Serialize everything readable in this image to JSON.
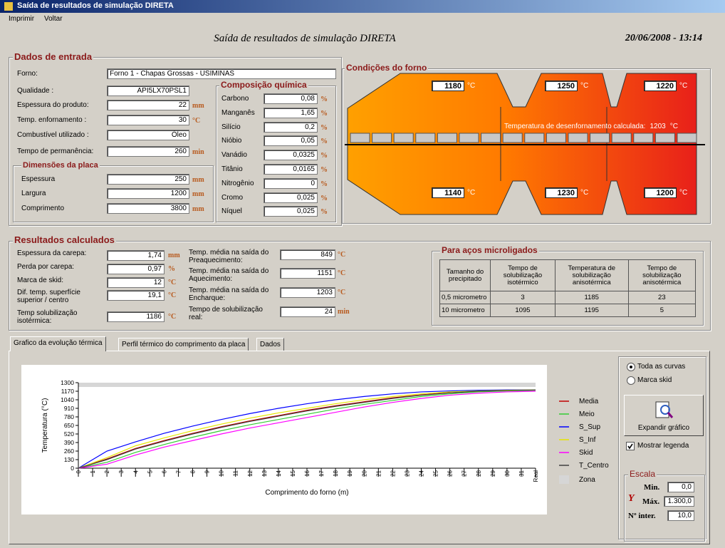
{
  "window": {
    "title": "Saída de resultados de simulação DIRETA",
    "menu": [
      "Imprimir",
      "Voltar"
    ]
  },
  "header": {
    "title": "Saída de resultados de simulação DIRETA",
    "datetime": "20/06/2008 - 13:14"
  },
  "input": {
    "title": "Dados de entrada",
    "fields": [
      {
        "label": "Forno:",
        "value": "Forno 1 - Chapas Grossas - USIMINAS"
      },
      {
        "label": "Qualidade :",
        "value": "API5LX70PSL1"
      },
      {
        "label": "Espessura do produto:",
        "value": "22",
        "unit": "mm"
      },
      {
        "label": "Temp. enfornamento :",
        "value": "30",
        "unit": "°C"
      },
      {
        "label": "Combustível utilizado :",
        "value": "Óleo"
      },
      {
        "label": "Tempo de permanência:",
        "value": "260",
        "unit": "min"
      }
    ],
    "dimensions": {
      "title": "Dimensões da placa",
      "fields": [
        {
          "label": "Espessura",
          "value": "250",
          "unit": "mm"
        },
        {
          "label": "Largura",
          "value": "1200",
          "unit": "mm"
        },
        {
          "label": "Comprimento",
          "value": "3800",
          "unit": "mm"
        }
      ]
    },
    "chemistry": {
      "title": "Composição química",
      "fields": [
        {
          "label": "Carbono",
          "value": "0,08",
          "unit": "%"
        },
        {
          "label": "Manganês",
          "value": "1,65",
          "unit": "%"
        },
        {
          "label": "Silício",
          "value": "0,2",
          "unit": "%"
        },
        {
          "label": "Nióbio",
          "value": "0,05",
          "unit": "%"
        },
        {
          "label": "Vanádio",
          "value": "0,0325",
          "unit": "%"
        },
        {
          "label": "Titânio",
          "value": "0,0165",
          "unit": "%"
        },
        {
          "label": "Nitrogênio",
          "value": "0",
          "unit": "%"
        },
        {
          "label": "Cromo",
          "value": "0,025",
          "unit": "%"
        },
        {
          "label": "Níquel",
          "value": "0,025",
          "unit": "%"
        }
      ]
    }
  },
  "furnace": {
    "title": "Condições do forno",
    "top": [
      "1180",
      "1250",
      "1220"
    ],
    "bottom": [
      "1140",
      "1230",
      "1200"
    ],
    "unit": "°C",
    "discharge_label": "Temperatura de desenfornamento calculada:",
    "discharge_value": "1203"
  },
  "results": {
    "title": "Resultados calculados",
    "left": [
      {
        "label": "Espessura da carepa:",
        "value": "1,74",
        "unit": "mm"
      },
      {
        "label": "Perda por carepa:",
        "value": "0,97",
        "unit": "%"
      },
      {
        "label": "Marca de skid:",
        "value": "12",
        "unit": "°C"
      },
      {
        "label": "Dif. temp. superfície superior / centro",
        "value": "19,1",
        "unit": "°C"
      },
      {
        "label": "Temp solubilização isotérmica:",
        "value": "1186",
        "unit": "°C"
      }
    ],
    "right": [
      {
        "label": "Temp. média na saída do Preaquecimento:",
        "value": "849",
        "unit": "°C"
      },
      {
        "label": "Temp. média na saída do Aquecimento:",
        "value": "1151",
        "unit": "°C"
      },
      {
        "label": "Temp. média na saída do Encharque:",
        "value": "1203",
        "unit": "°C"
      },
      {
        "label": "Tempo de solubilização real:",
        "value": "24",
        "unit": "min"
      }
    ]
  },
  "micro": {
    "title": "Para aços microligados",
    "columns": [
      "Tamanho do precipitado",
      "Tempo de solubilização isotérmico",
      "Temperatura de solubilização anisotérmica",
      "Tempo de solubilização anisotérmica"
    ],
    "rows": [
      [
        "0,5 micrometro",
        "3",
        "1185",
        "23"
      ],
      [
        "10 micrometro",
        "1095",
        "1195",
        "5"
      ]
    ]
  },
  "tabs": [
    "Grafico da evolução térmica",
    "Perfil térmico do comprimento da placa",
    "Dados"
  ],
  "controls": {
    "radios": [
      "Toda as curvas",
      "Marca skid"
    ],
    "button": "Expandir gráfico",
    "checkbox": "Mostrar legenda",
    "scale": {
      "title": "Escala",
      "axis": "Y",
      "min_label": "Min.",
      "min": "0,0",
      "max_label": "Máx.",
      "max": "1.300,0",
      "intervals_label": "Nº inter.",
      "intervals": "10,0"
    }
  },
  "chart_data": {
    "type": "line",
    "x_label": "Comprimento do forno (m)",
    "y_label": "Temperatura (°C)",
    "x": [
      0,
      2,
      4,
      6,
      8,
      10,
      12,
      14,
      16,
      18,
      20,
      22,
      24,
      26,
      28,
      30,
      32
    ],
    "series": [
      {
        "name": "Media",
        "color": "#c00000",
        "values": [
          0,
          140,
          300,
          420,
          530,
          630,
          720,
          800,
          880,
          950,
          1010,
          1070,
          1115,
          1150,
          1170,
          1180,
          1190
        ]
      },
      {
        "name": "Meio",
        "color": "#33cc33",
        "values": [
          0,
          90,
          240,
          360,
          470,
          570,
          660,
          740,
          820,
          900,
          970,
          1030,
          1090,
          1130,
          1160,
          1175,
          1185
        ]
      },
      {
        "name": "S_Sup",
        "color": "#0000ff",
        "values": [
          0,
          260,
          400,
          530,
          640,
          740,
          830,
          910,
          980,
          1040,
          1090,
          1130,
          1160,
          1175,
          1185,
          1190,
          1190
        ]
      },
      {
        "name": "S_Inf",
        "color": "#e6e600",
        "values": [
          0,
          160,
          340,
          460,
          570,
          670,
          760,
          840,
          910,
          980,
          1040,
          1090,
          1130,
          1160,
          1175,
          1185,
          1190
        ]
      },
      {
        "name": "Skid",
        "color": "#ff00ff",
        "values": [
          0,
          60,
          200,
          320,
          420,
          520,
          610,
          690,
          770,
          850,
          930,
          1000,
          1060,
          1110,
          1140,
          1160,
          1170
        ]
      },
      {
        "name": "T_Centro",
        "color": "#404040",
        "values": [
          0,
          130,
          290,
          410,
          520,
          620,
          710,
          790,
          870,
          940,
          1000,
          1060,
          1110,
          1145,
          1170,
          1180,
          1190
        ]
      }
    ],
    "zone": {
      "name": "Zona",
      "color": "#d6d6d6"
    },
    "xlim": [
      0,
      32
    ],
    "ylim": [
      0,
      1300
    ],
    "yticks": [
      0,
      130,
      260,
      390,
      520,
      650,
      780,
      910,
      1040,
      1170,
      1300
    ],
    "xticks": [
      0,
      1,
      2,
      3,
      4,
      5,
      6,
      7,
      8,
      9,
      10,
      11,
      12,
      13,
      14,
      15,
      16,
      17,
      18,
      19,
      20,
      21,
      22,
      23,
      24,
      25,
      26,
      27,
      28,
      29,
      30,
      31,
      {
        "value": 32,
        "label": "Real"
      }
    ],
    "legend": "right"
  }
}
